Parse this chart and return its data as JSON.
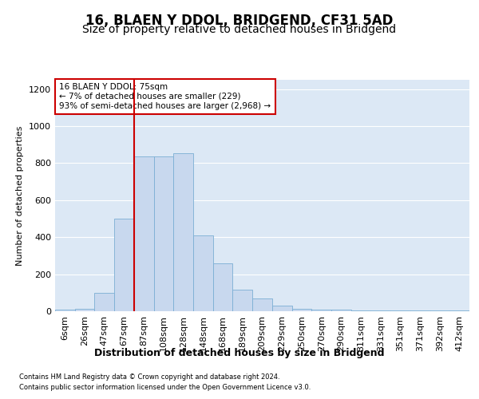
{
  "title1": "16, BLAEN Y DDOL, BRIDGEND, CF31 5AD",
  "title2": "Size of property relative to detached houses in Bridgend",
  "xlabel": "Distribution of detached houses by size in Bridgend",
  "ylabel": "Number of detached properties",
  "footer1": "Contains HM Land Registry data © Crown copyright and database right 2024.",
  "footer2": "Contains public sector information licensed under the Open Government Licence v3.0.",
  "annotation_line1": "16 BLAEN Y DDOL: 75sqm",
  "annotation_line2": "← 7% of detached houses are smaller (229)",
  "annotation_line3": "93% of semi-detached houses are larger (2,968) →",
  "categories": [
    "6sqm",
    "26sqm",
    "47sqm",
    "67sqm",
    "87sqm",
    "108sqm",
    "128sqm",
    "148sqm",
    "168sqm",
    "189sqm",
    "209sqm",
    "229sqm",
    "250sqm",
    "270sqm",
    "290sqm",
    "311sqm",
    "331sqm",
    "351sqm",
    "371sqm",
    "392sqm",
    "412sqm"
  ],
  "values": [
    10,
    15,
    100,
    500,
    835,
    835,
    855,
    408,
    257,
    115,
    68,
    32,
    15,
    10,
    10,
    5,
    5,
    5,
    5,
    5,
    3
  ],
  "bar_color": "#c8d8ee",
  "bar_edge_color": "#7bafd4",
  "red_line_index": 4,
  "ylim": [
    0,
    1250
  ],
  "yticks": [
    0,
    200,
    400,
    600,
    800,
    1000,
    1200
  ],
  "plot_bg_color": "#dce8f5",
  "grid_color": "#ffffff",
  "title1_fontsize": 12,
  "title2_fontsize": 10,
  "annotation_box_facecolor": "#ffffff",
  "annotation_box_edgecolor": "#cc0000",
  "red_line_color": "#cc0000",
  "tick_fontsize": 8,
  "ylabel_fontsize": 8,
  "xlabel_fontsize": 9
}
